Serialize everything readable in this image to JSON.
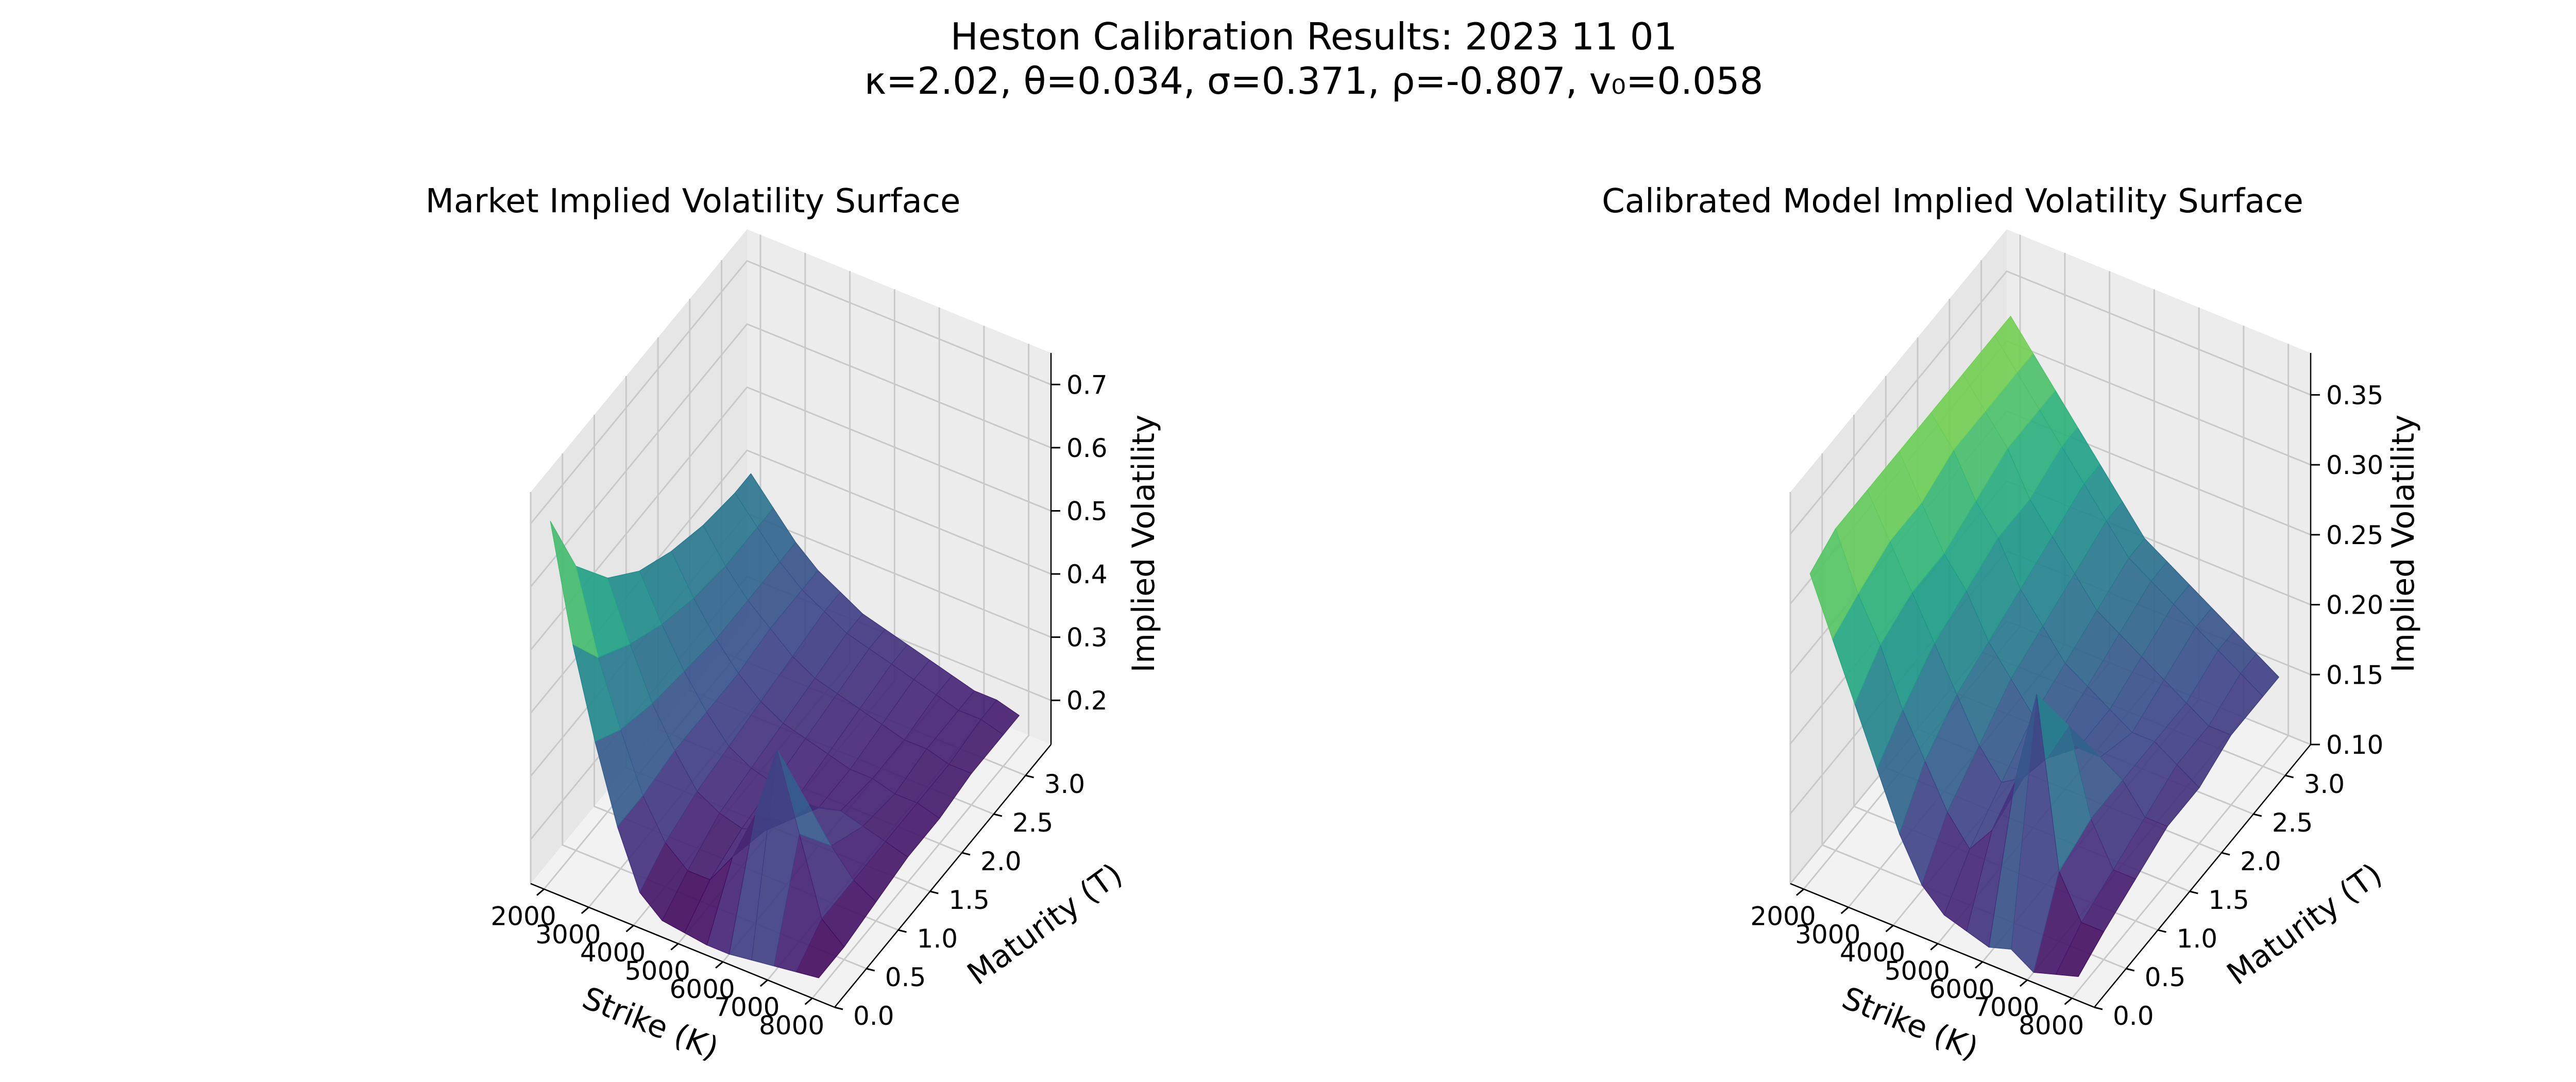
{
  "figure": {
    "title_line1": "Heston Calibration Results: 2023 11 01",
    "title_line2": "κ=2.02, θ=0.034, σ=0.371, ρ=-0.807, v₀=0.058"
  },
  "colormap": [
    "#440154",
    "#482878",
    "#3e4989",
    "#31688e",
    "#26828e",
    "#1f9e89",
    "#35b779",
    "#6ece58",
    "#b5de2b",
    "#fde725"
  ],
  "chart_data": [
    {
      "type": "surface3d",
      "title": "Market Implied Volatility Surface",
      "xlabel": "Strike (K)",
      "ylabel": "Maturity (T)",
      "zlabel": "Implied Volatility",
      "xlim": [
        1700,
        8500
      ],
      "ylim": [
        0,
        3.4
      ],
      "zlim": [
        0.13,
        0.75
      ],
      "x_ticks": [
        2000,
        3000,
        4000,
        5000,
        6000,
        7000,
        8000
      ],
      "y_ticks": [
        "0.0",
        "0.5",
        "1.0",
        "1.5",
        "2.0",
        "2.5",
        "3.0"
      ],
      "z_ticks": [
        "0.2",
        "0.3",
        "0.4",
        "0.5",
        "0.6",
        "0.7"
      ],
      "strikes": [
        2000,
        2500,
        3000,
        3500,
        4000,
        4500,
        5000,
        5500,
        6000,
        6500,
        7000,
        7500,
        8000
      ],
      "maturities": [
        0.1,
        0.5,
        1.0,
        1.5,
        2.0,
        2.5,
        3.0,
        3.25
      ],
      "iv": [
        [
          0.7,
          0.52,
          0.38,
          0.26,
          0.17,
          0.14,
          0.135,
          0.13,
          0.13,
          0.135,
          0.14,
          0.145,
          0.15
        ],
        [
          0.58,
          0.45,
          0.35,
          0.26,
          0.2,
          0.17,
          0.17,
          0.22,
          0.3,
          0.42,
          0.3,
          0.18,
          0.15
        ],
        [
          0.5,
          0.41,
          0.33,
          0.27,
          0.22,
          0.2,
          0.19,
          0.2,
          0.23,
          0.27,
          0.22,
          0.18,
          0.16
        ],
        [
          0.45,
          0.38,
          0.32,
          0.27,
          0.23,
          0.21,
          0.2,
          0.19,
          0.19,
          0.2,
          0.19,
          0.18,
          0.17
        ],
        [
          0.42,
          0.36,
          0.31,
          0.27,
          0.24,
          0.22,
          0.21,
          0.2,
          0.19,
          0.19,
          0.18,
          0.18,
          0.17
        ],
        [
          0.4,
          0.35,
          0.31,
          0.28,
          0.25,
          0.23,
          0.22,
          0.21,
          0.2,
          0.19,
          0.19,
          0.18,
          0.18
        ],
        [
          0.39,
          0.35,
          0.31,
          0.28,
          0.26,
          0.24,
          0.23,
          0.22,
          0.21,
          0.2,
          0.19,
          0.19,
          0.18
        ],
        [
          0.39,
          0.35,
          0.31,
          0.28,
          0.26,
          0.24,
          0.23,
          0.22,
          0.21,
          0.2,
          0.19,
          0.19,
          0.18
        ]
      ]
    },
    {
      "type": "surface3d",
      "title": "Calibrated Model Implied Volatility Surface",
      "xlabel": "Strike (K)",
      "ylabel": "Maturity (T)",
      "zlabel": "Implied Volatility",
      "xlim": [
        1700,
        8500
      ],
      "ylim": [
        0,
        3.4
      ],
      "zlim": [
        0.1,
        0.38
      ],
      "x_ticks": [
        2000,
        3000,
        4000,
        5000,
        6000,
        7000,
        8000
      ],
      "y_ticks": [
        "0.0",
        "0.5",
        "1.0",
        "1.5",
        "2.0",
        "2.5",
        "3.0"
      ],
      "z_ticks": [
        "0.10",
        "0.15",
        "0.20",
        "0.25",
        "0.30",
        "0.35"
      ],
      "strikes": [
        2000,
        2500,
        3000,
        3500,
        4000,
        4500,
        5000,
        5500,
        6000,
        6500,
        7000,
        7500,
        8000
      ],
      "maturities": [
        0.1,
        0.5,
        1.0,
        1.5,
        2.0,
        2.5,
        3.0,
        3.25
      ],
      "iv": [
        [
          0.32,
          0.28,
          0.24,
          0.2,
          0.16,
          0.13,
          0.115,
          0.11,
          0.105,
          0.11,
          0.1,
          0.105,
          0.11
        ],
        [
          0.33,
          0.29,
          0.26,
          0.22,
          0.19,
          0.16,
          0.14,
          0.16,
          0.2,
          0.27,
          0.15,
          0.12,
          0.12
        ],
        [
          0.33,
          0.3,
          0.27,
          0.24,
          0.21,
          0.18,
          0.16,
          0.17,
          0.19,
          0.22,
          0.16,
          0.13,
          0.13
        ],
        [
          0.33,
          0.3,
          0.27,
          0.25,
          0.22,
          0.2,
          0.18,
          0.17,
          0.17,
          0.17,
          0.16,
          0.14,
          0.14
        ],
        [
          0.33,
          0.31,
          0.28,
          0.26,
          0.23,
          0.21,
          0.19,
          0.18,
          0.17,
          0.16,
          0.16,
          0.15,
          0.14
        ],
        [
          0.33,
          0.31,
          0.29,
          0.26,
          0.24,
          0.22,
          0.2,
          0.19,
          0.18,
          0.17,
          0.16,
          0.15,
          0.15
        ],
        [
          0.33,
          0.31,
          0.29,
          0.27,
          0.25,
          0.23,
          0.21,
          0.2,
          0.19,
          0.18,
          0.17,
          0.16,
          0.15
        ],
        [
          0.33,
          0.31,
          0.29,
          0.27,
          0.25,
          0.23,
          0.21,
          0.2,
          0.19,
          0.18,
          0.17,
          0.16,
          0.15
        ]
      ]
    }
  ]
}
